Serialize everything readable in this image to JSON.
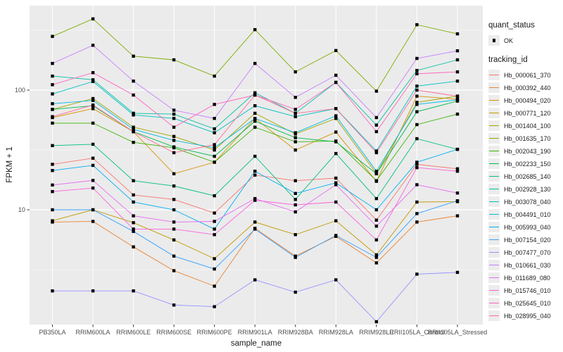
{
  "colors": {
    "panel_bg": "#EBEBEB",
    "grid": "#FFFFFF",
    "tick_text": "#4d4d4d",
    "axis_title_text": "#1a1a1a",
    "marker": "#000000",
    "legend_key_bg": "#ECECEC"
  },
  "axes": {
    "y_tick_labels": [
      "100",
      "10"
    ],
    "x_title": "sample_name",
    "y_title": "FPKM + 1"
  },
  "legend": {
    "quant_status_title": "quant_status",
    "ok_label": "OK",
    "tracking_id_title": "tracking_id"
  },
  "chart_data": {
    "type": "line",
    "title": "",
    "xlabel": "sample_name",
    "ylabel": "FPKM + 1",
    "y_scale": "log10",
    "ylim": [
      1.05,
      510
    ],
    "y_ticks": [
      100,
      10
    ],
    "y_minor_ticks": [
      316.2,
      31.62,
      3.162
    ],
    "grid": true,
    "legend_position": "right",
    "point_marker": "black square (quant_status OK)",
    "categories": [
      "PB350LA",
      "RRIM600LA",
      "RRIM600LE",
      "RRIM600SE",
      "RRIM600PE",
      "RRIM901LA",
      "RRIM928BA",
      "RRIM928LA",
      "RRIM928LE",
      "RRII105LA_Control",
      "RRII105LA_Stressed"
    ],
    "series": [
      {
        "name": "Hb_000061_370",
        "color": "#F8766D",
        "values": [
          24,
          27,
          13.3,
          12.2,
          9.4,
          19.5,
          17.5,
          18.4,
          8.2,
          24,
          22
        ]
      },
      {
        "name": "Hb_000392_440",
        "color": "#EA8331",
        "values": [
          7.9,
          8.0,
          4.9,
          3.1,
          2.3,
          7.0,
          4.1,
          6.0,
          3.6,
          7.9,
          8.9
        ]
      },
      {
        "name": "Hb_000494_020",
        "color": "#D89000",
        "values": [
          59,
          70,
          45,
          20,
          25,
          58,
          31.6,
          44.6,
          17.3,
          89,
          84
        ]
      },
      {
        "name": "Hb_000771_120",
        "color": "#C09B00",
        "values": [
          8.1,
          10,
          7.8,
          5.6,
          3.9,
          7.9,
          6.2,
          8.1,
          4.2,
          11.6,
          11.7
        ]
      },
      {
        "name": "Hb_001404_100",
        "color": "#A3A500",
        "values": [
          69,
          85,
          49,
          41,
          31.6,
          64,
          43,
          58,
          20,
          79,
          89
        ]
      },
      {
        "name": "Hb_001635_170",
        "color": "#7CAE00",
        "values": [
          281,
          394,
          192,
          179,
          131,
          320,
          142,
          214,
          98,
          352,
          295
        ]
      },
      {
        "name": "Hb_002043_190",
        "color": "#39B600",
        "values": [
          53,
          53,
          36.6,
          33,
          25,
          49,
          37,
          37.5,
          17.5,
          51.5,
          63
        ]
      },
      {
        "name": "Hb_002233_150",
        "color": "#00BB4E",
        "values": [
          69,
          74,
          45,
          33.5,
          28,
          55,
          40,
          37,
          20,
          66,
          81
        ]
      },
      {
        "name": "Hb_002685_140",
        "color": "#00BF7D",
        "values": [
          34.4,
          35.3,
          17.5,
          15.8,
          13.1,
          28,
          12.2,
          29.5,
          12.4,
          39.3,
          32
        ]
      },
      {
        "name": "Hb_002928_130",
        "color": "#00C1A3",
        "values": [
          131,
          122,
          64,
          63,
          47.5,
          95,
          64,
          116,
          51,
          146,
          179
        ]
      },
      {
        "name": "Hb_003078_040",
        "color": "#00BFC4",
        "values": [
          93,
          118,
          62,
          58,
          44,
          74,
          60,
          70,
          31,
          108,
          119
        ]
      },
      {
        "name": "Hb_004491_010",
        "color": "#00BAE0",
        "values": [
          77,
          82,
          47,
          38,
          33,
          58,
          44,
          61,
          21,
          76,
          83
        ]
      },
      {
        "name": "Hb_005993_040",
        "color": "#00B0F6",
        "values": [
          21.3,
          23.5,
          11.6,
          10.0,
          6.9,
          21,
          13.7,
          16.8,
          10.0,
          25,
          32
        ]
      },
      {
        "name": "Hb_007154_020",
        "color": "#35A2FF",
        "values": [
          10.0,
          10.0,
          6.6,
          4.1,
          3.2,
          6.9,
          4.0,
          6.1,
          4.0,
          9.3,
          11.9
        ]
      },
      {
        "name": "Hb_007477_070",
        "color": "#9590FF",
        "values": [
          2.1,
          2.1,
          2.1,
          1.6,
          1.55,
          2.6,
          2.05,
          2.6,
          1.16,
          2.9,
          3.0
        ]
      },
      {
        "name": "Hb_010661_030",
        "color": "#C77CFF",
        "values": [
          167,
          237,
          119,
          68,
          58,
          167,
          87,
          133,
          59,
          184,
          213
        ]
      },
      {
        "name": "Hb_011689_080",
        "color": "#E76BF3",
        "values": [
          16.1,
          17.6,
          8.9,
          7.9,
          8.0,
          12.4,
          9.6,
          16.2,
          7.3,
          16.2,
          13.8
        ]
      },
      {
        "name": "Hb_015746_010",
        "color": "#FA62DB",
        "values": [
          14.2,
          15.2,
          6.9,
          6.9,
          6.2,
          12.0,
          11.0,
          11.6,
          5.6,
          22.5,
          21
        ]
      },
      {
        "name": "Hb_025645_010",
        "color": "#FF62BC",
        "values": [
          111,
          140,
          91,
          49,
          76,
          91,
          69,
          116,
          45,
          137,
          142
        ]
      },
      {
        "name": "Hb_028995_040",
        "color": "#FF6A98",
        "values": [
          60,
          75,
          45,
          30,
          35,
          91,
          64,
          70,
          30,
          100,
          89
        ]
      }
    ]
  }
}
